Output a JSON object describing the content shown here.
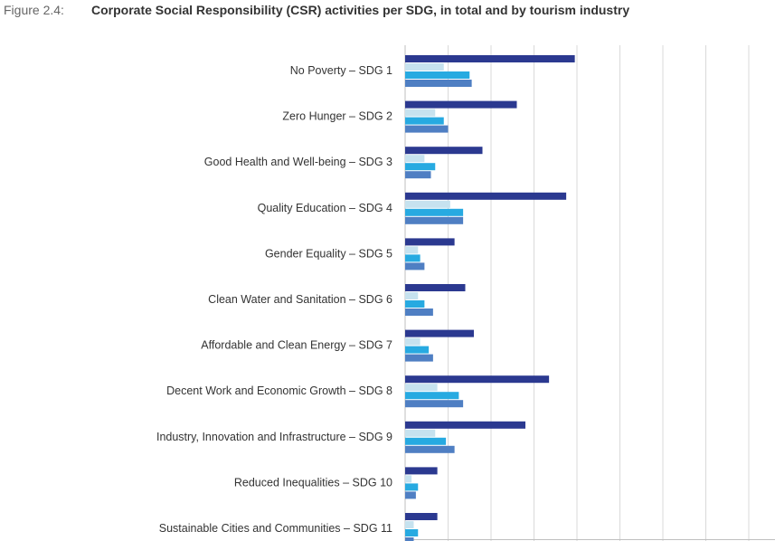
{
  "figure": {
    "number": "Figure 2.4:",
    "title": "Corporate Social Responsibility (CSR) activities per SDG, in total and by tourism industry"
  },
  "chart_data": {
    "type": "bar",
    "orientation": "horizontal",
    "grid": true,
    "xlim": [
      0,
      80
    ],
    "categories": [
      "No Poverty – SDG 1",
      "Zero Hunger – SDG 2",
      "Good Health and Well-being – SDG 3",
      "Quality Education – SDG 4",
      "Gender Equality – SDG 5",
      "Clean Water and Sanitation – SDG 6",
      "Affordable and Clean Energy – SDG 7",
      "Decent Work and Economic Growth – SDG 8",
      "Industry, Innovation and Infrastructure – SDG 9",
      "Reduced Inequalities – SDG 10",
      "Sustainable Cities and Communities – SDG 11"
    ],
    "series": [
      {
        "values": [
          39.5,
          26,
          18,
          37.5,
          11.5,
          14,
          16,
          33.5,
          28,
          7.5,
          7.5
        ],
        "color": "#2b3990"
      },
      {
        "values": [
          9,
          7,
          4.5,
          10.5,
          3,
          3,
          3.5,
          7.5,
          7,
          1.5,
          2
        ],
        "color": "#c6e2ef"
      },
      {
        "values": [
          15,
          9,
          7,
          13.5,
          3.5,
          4.5,
          5.5,
          12.5,
          9.5,
          3,
          3
        ],
        "color": "#27aae1"
      },
      {
        "values": [
          15.5,
          10,
          6,
          13.5,
          4.5,
          6.5,
          6.5,
          13.5,
          11.5,
          2.5,
          2
        ],
        "color": "#4f7fc3"
      }
    ]
  }
}
